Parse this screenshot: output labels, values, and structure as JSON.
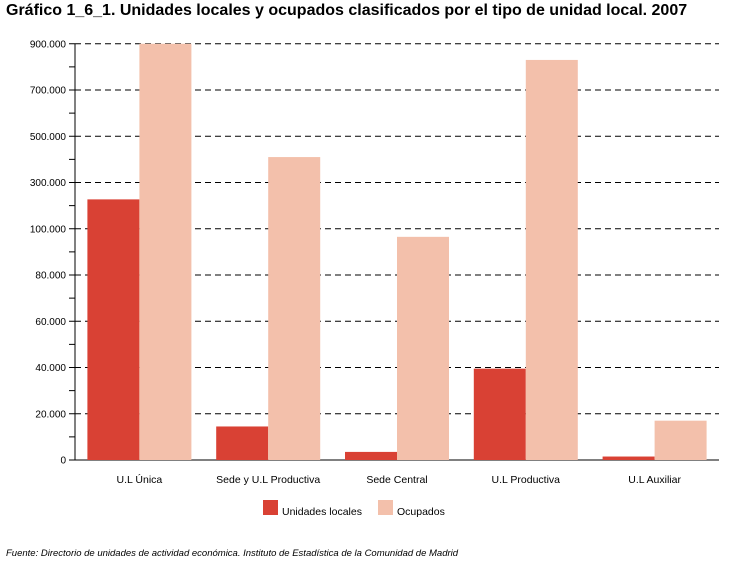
{
  "title": "Gráfico 1_6_1. Unidades locales y ocupados clasificados por el tipo de unidad local. 2007",
  "source": "Fuente: Directorio de unidades de actividad económica. Instituto de Estadística de la Comunidad de Madrid",
  "colors": {
    "series1": "#d94134",
    "series2": "#f3c0ab",
    "grid": "#000000"
  },
  "chart_data": {
    "type": "bar",
    "title": "Gráfico 1_6_1. Unidades locales y ocupados clasificados por el tipo de unidad local. 2007",
    "xlabel": "",
    "ylabel": "",
    "scale": "broken axis: linear 0–100.000 (step 20.000) in lower part, then 100.000–900.000 (step 200.000) above",
    "y_ticks": [
      "0",
      "20.000",
      "40.000",
      "60.000",
      "80.000",
      "100.000",
      "300.000",
      "500.000",
      "700.000",
      "900.000"
    ],
    "y_tick_values": [
      0,
      20000,
      40000,
      60000,
      80000,
      100000,
      300000,
      500000,
      700000,
      900000
    ],
    "categories": [
      "U.L Única",
      "Sede y U.L Productiva",
      "Sede Central",
      "U.L Productiva",
      "U.L Auxiliar"
    ],
    "series": [
      {
        "name": "Unidades locales",
        "values": [
          227000,
          14500,
          3500,
          39500,
          1500
        ]
      },
      {
        "name": "Ocupados",
        "values": [
          900000,
          410000,
          96500,
          830000,
          17000
        ]
      }
    ],
    "legend": "bottom-center",
    "grid": "horizontal dashed"
  }
}
